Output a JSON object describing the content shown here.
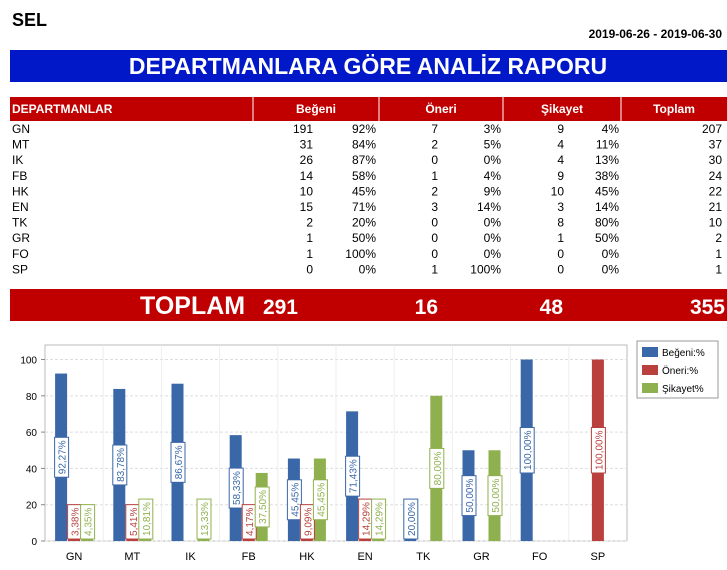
{
  "header": {
    "title": "SEL",
    "date_range": "2019-06-26 - 2019-06-30",
    "report_title": "DEPARTMANLARA GÖRE ANALİZ RAPORU"
  },
  "table": {
    "columns": [
      "DEPARTMANLAR",
      "Beğeni",
      "Öneri",
      "Şikayet",
      "Toplam"
    ],
    "rows": [
      [
        "GN",
        191,
        "92%",
        7,
        "3%",
        9,
        "4%",
        207
      ],
      [
        "MT",
        31,
        "84%",
        2,
        "5%",
        4,
        "11%",
        37
      ],
      [
        "IK",
        26,
        "87%",
        0,
        "0%",
        4,
        "13%",
        30
      ],
      [
        "FB",
        14,
        "58%",
        1,
        "4%",
        9,
        "38%",
        24
      ],
      [
        "HK",
        10,
        "45%",
        2,
        "9%",
        10,
        "45%",
        22
      ],
      [
        "EN",
        15,
        "71%",
        3,
        "14%",
        3,
        "14%",
        21
      ],
      [
        "TK",
        2,
        "20%",
        0,
        "0%",
        8,
        "80%",
        10
      ],
      [
        "GR",
        1,
        "50%",
        0,
        "0%",
        1,
        "50%",
        2
      ],
      [
        "FO",
        1,
        "100%",
        0,
        "0%",
        0,
        "0%",
        1
      ],
      [
        "SP",
        0,
        "0%",
        1,
        "100%",
        0,
        "0%",
        1
      ]
    ]
  },
  "totals": {
    "label": "TOPLAM",
    "values": [
      291,
      16,
      48,
      355
    ]
  },
  "chart_data": {
    "type": "bar",
    "categories": [
      "GN",
      "MT",
      "IK",
      "FB",
      "HK",
      "EN",
      "TK",
      "GR",
      "FO",
      "SP"
    ],
    "series": [
      {
        "name": "Beğeni:%",
        "color": "#3a67a8",
        "values": [
          92.27,
          83.78,
          86.67,
          58.33,
          45.45,
          71.43,
          20,
          50,
          100,
          0
        ],
        "value_labels": [
          "92,27%",
          "83,78%",
          "86,67%",
          "58,33%",
          "45,45%",
          "71,43%",
          "20,00%",
          "50,00%",
          "100,00%",
          null
        ]
      },
      {
        "name": "Öneri:%",
        "color": "#b9403d",
        "values": [
          3.38,
          5.41,
          0,
          4.17,
          9.09,
          14.29,
          0,
          0,
          0,
          100
        ],
        "value_labels": [
          "3,38%",
          "5,41%",
          null,
          "4,17%",
          "9,09%",
          "14,29%",
          null,
          null,
          null,
          "100,00%"
        ]
      },
      {
        "name": "Şikayet%",
        "color": "#8fb04e",
        "values": [
          4.35,
          10.81,
          13.33,
          37.5,
          45.45,
          14.29,
          80,
          50,
          0,
          0
        ],
        "value_labels": [
          "4,35%",
          "10,81%",
          "13,33%",
          "37,50%",
          "45,45%",
          "14,29%",
          "80,00%",
          "50,00%",
          null,
          null
        ]
      }
    ],
    "ylim": [
      0,
      108
    ],
    "yticks": [
      0,
      20,
      40,
      60,
      80,
      100
    ],
    "grid": true,
    "legend": "top-right"
  }
}
